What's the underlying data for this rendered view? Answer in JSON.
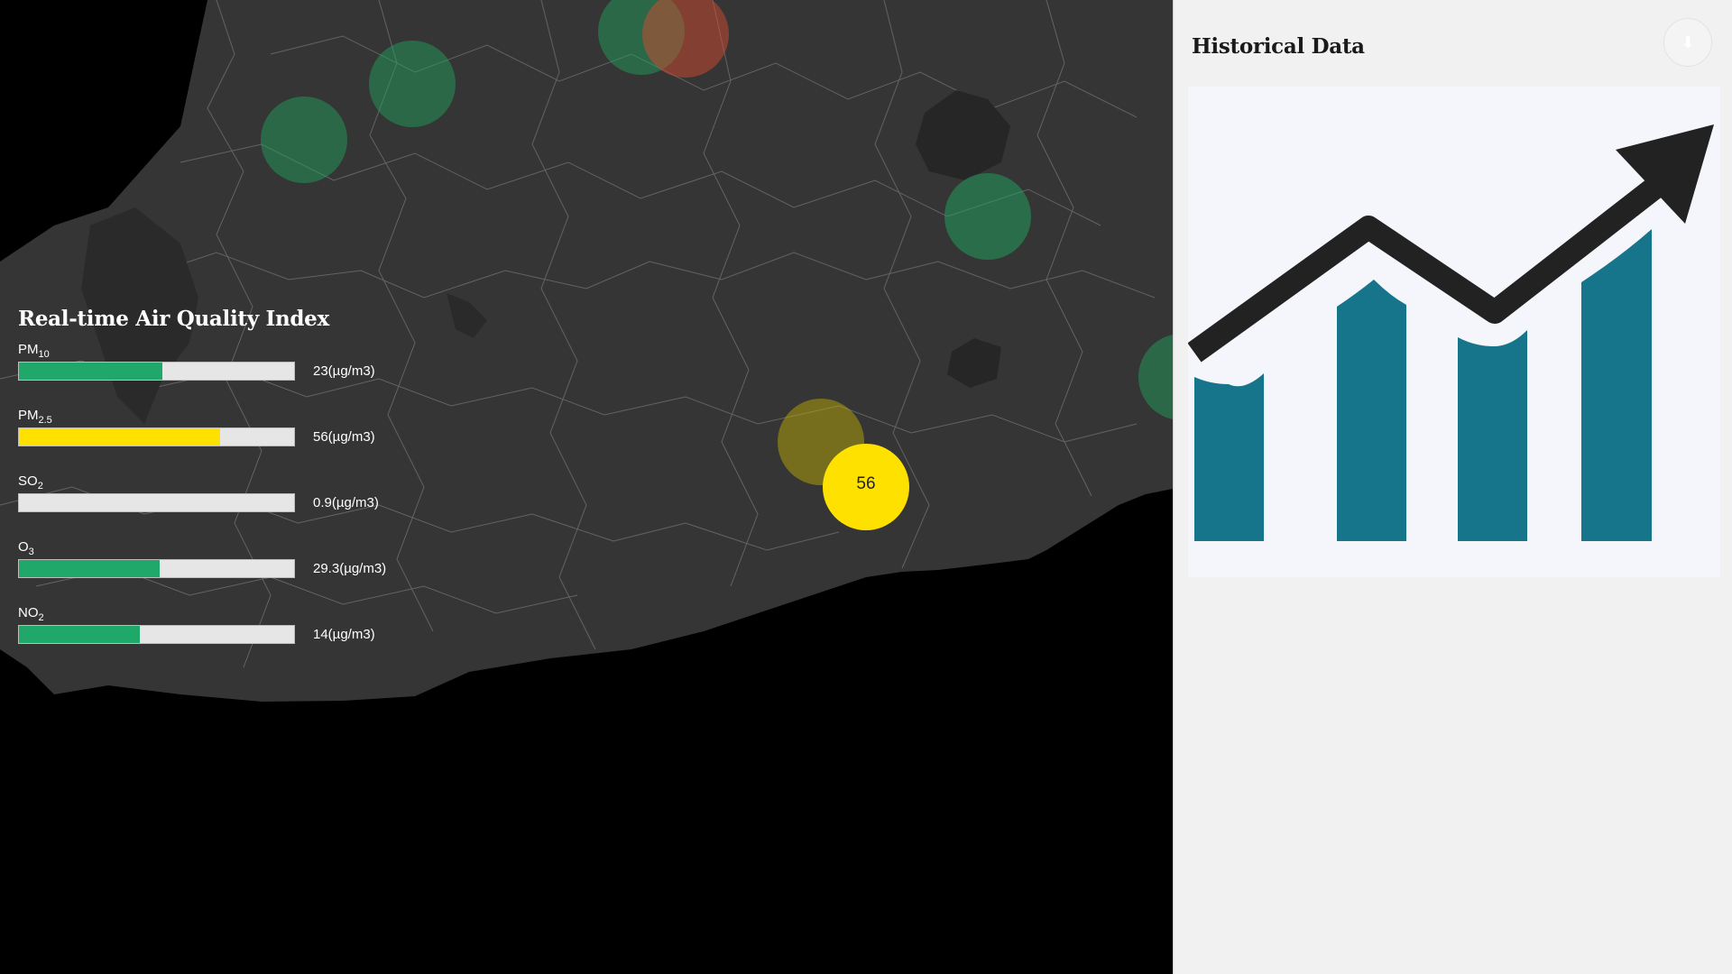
{
  "map": {
    "active_marker": {
      "value": "56",
      "color": "#ffe100"
    },
    "markers": [
      {
        "status": "good",
        "color": "#1fa65f"
      },
      {
        "status": "good",
        "color": "#1fa65f"
      },
      {
        "status": "good",
        "color": "#1fa65f"
      },
      {
        "status": "good",
        "color": "#1fa65f"
      },
      {
        "status": "moderate",
        "color": "#c8b400"
      },
      {
        "status": "unhealthy",
        "color": "#d24a2e"
      }
    ]
  },
  "aqi_panel": {
    "title": "Real-time Air Quality Index",
    "pollutants": [
      {
        "name": "PM",
        "sub": "10",
        "value": "23(µg/m3)",
        "level": 0.52,
        "color": "#1fa86a"
      },
      {
        "name": "PM",
        "sub": "2.5",
        "value": "56(µg/m3)",
        "level": 0.73,
        "color": "#ffe100"
      },
      {
        "name": "SO",
        "sub": "2",
        "value": "0.9(µg/m3)",
        "level": 0.0,
        "color": "#1fa86a"
      },
      {
        "name": "O",
        "sub": "3",
        "value": "29.3(µg/m3)",
        "level": 0.51,
        "color": "#1fa86a"
      },
      {
        "name": "NO",
        "sub": "2",
        "value": "14(µg/m3)",
        "level": 0.44,
        "color": "#1fa86a"
      }
    ]
  },
  "history_panel": {
    "title": "Historical Data",
    "close_icon": "down-arrow-icon",
    "illustration": {
      "bar_color": "#17758b",
      "arrow_color": "#222222"
    }
  }
}
